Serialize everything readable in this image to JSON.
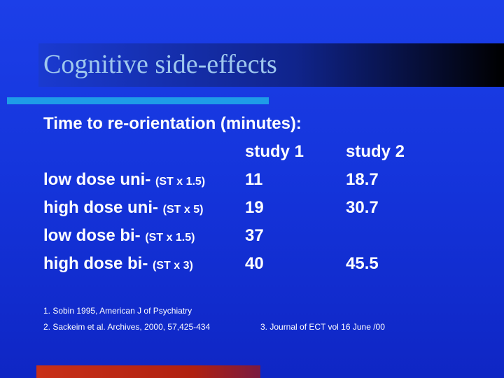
{
  "slide": {
    "title": "Cognitive side-effects",
    "subtitle": "Time to re-orientation (minutes):",
    "columns": [
      "study 1",
      "study 2"
    ],
    "rows": [
      {
        "label": "low dose uni-",
        "note": "(ST x 1.5)",
        "study1": "11",
        "study2": "18.7"
      },
      {
        "label": "high dose uni-",
        "note": "(ST x 5)",
        "study1": "19",
        "study2": "30.7"
      },
      {
        "label": "low dose bi-",
        "note": "(ST x 1.5)",
        "study1": "37",
        "study2": ""
      },
      {
        "label": "high dose bi-",
        "note": "(ST x 3)",
        "study1": "40",
        "study2": "45.5"
      }
    ],
    "references": [
      "1. Sobin 1995, American J of Psychiatry",
      "2. Sackeim et al. Archives, 2000, 57,425-434",
      "3. Journal of ECT vol 16  June /00"
    ]
  },
  "colors": {
    "background": "#1535dc",
    "title_text": "#9fc8ee",
    "accent_bar": "#1e9ce8",
    "bottom_bar": "#c83018"
  }
}
